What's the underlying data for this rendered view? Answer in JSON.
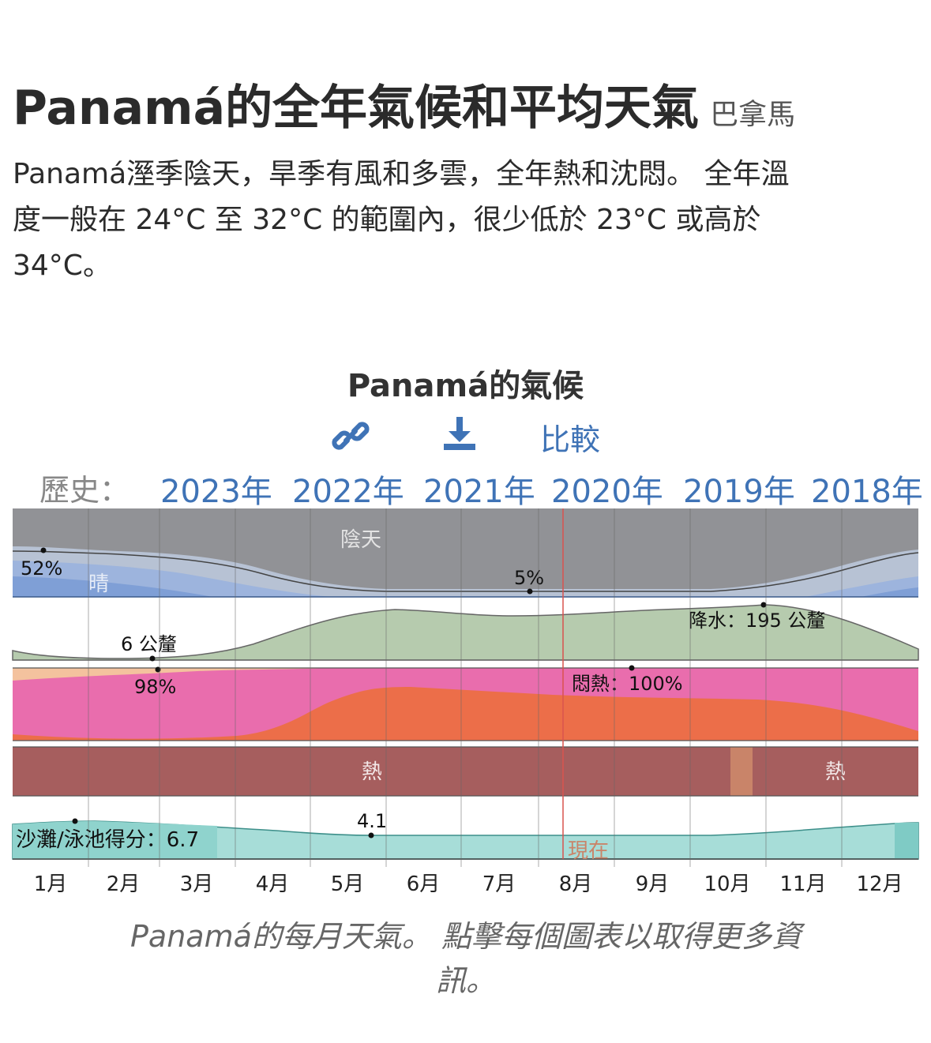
{
  "header": {
    "title": "Panamá的全年氣候和平均天氣",
    "country": "巴拿馬"
  },
  "description": {
    "line1": "Panamá溼季陰天，旱季有風和多雲，全年熱和沈悶。 全年溫",
    "line2": "度一般在 24°C 至 32°C 的範圍內，很少低於 23°C 或高於",
    "line3": "34°C。"
  },
  "chart_section": {
    "title": "Panamá的氣候",
    "compare_label": "比較",
    "history_label": "歷史：",
    "years": [
      "2023年",
      "2022年",
      "2021年",
      "2020年",
      "2019年",
      "2018年"
    ],
    "caption_line1": "Panamá的每月天氣。 點擊每個圖表以取得更多資",
    "caption_line2": "訊。"
  },
  "chart_data": {
    "type": "area",
    "months": [
      "1月",
      "2月",
      "3月",
      "4月",
      "5月",
      "6月",
      "7月",
      "8月",
      "9月",
      "10月",
      "11月",
      "12月"
    ],
    "colors": {
      "overcast": "#919296",
      "clear": "#8ea9d9",
      "precipitation": "#b6cbae",
      "muggy_miserable": "#ec6e49",
      "muggy_oppressive": "#e96dad",
      "muggy_comfortable": "#f4c29e",
      "hot": "#a65e5e",
      "warm": "#c98469",
      "beach_score": "#a7ddd8",
      "now_line": "#d9534f"
    },
    "cloud_cover": {
      "label_overcast": "陰天",
      "label_clear": "晴",
      "max_clear_label": "52%",
      "min_clear_label": "5%"
    },
    "precipitation": {
      "label": "降水：195 公釐",
      "min_label": "6 公釐",
      "values_mm": [
        10,
        6,
        8,
        40,
        130,
        160,
        150,
        150,
        165,
        195,
        150,
        40
      ]
    },
    "humidity": {
      "min_label": "98%",
      "max_label": "悶熱：100%"
    },
    "temperature": {
      "label_hot": "熱"
    },
    "beach": {
      "label": "沙灘/泳池得分：6.7",
      "min_label": "4.1"
    },
    "now_label": "現在"
  }
}
